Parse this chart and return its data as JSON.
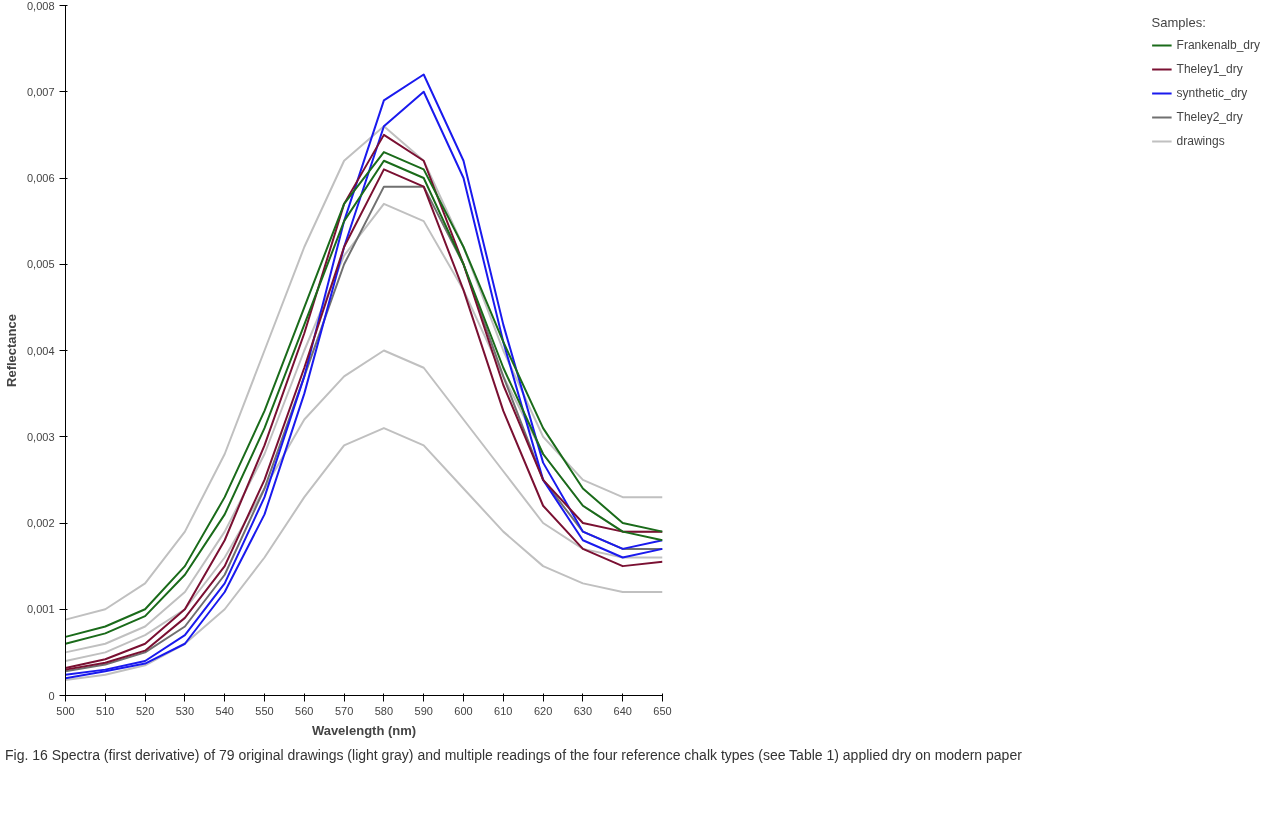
{
  "chart_data": {
    "type": "line",
    "xlabel": "Wavelength (nm)",
    "ylabel": "Reflectance",
    "legend_title": "Samples:",
    "x": [
      500,
      510,
      520,
      530,
      540,
      550,
      560,
      570,
      580,
      590,
      600,
      610,
      620,
      630,
      640,
      650
    ],
    "xlim": [
      500,
      650
    ],
    "xticks": [
      500,
      510,
      520,
      530,
      540,
      550,
      560,
      570,
      580,
      590,
      600,
      610,
      620,
      630,
      640,
      650
    ],
    "ylim": [
      0,
      0.008
    ],
    "yticks": [
      0,
      {
        "value": 0.001,
        "label": "0,001"
      },
      {
        "value": 0.002,
        "label": "0,002"
      },
      {
        "value": 0.003,
        "label": "0,003"
      },
      {
        "value": 0.004,
        "label": "0,004"
      },
      {
        "value": 0.005,
        "label": "0,005"
      },
      {
        "value": 0.006,
        "label": "0,006"
      },
      {
        "value": 0.007,
        "label": "0,007"
      },
      {
        "value": 0.008,
        "label": "0,008"
      }
    ],
    "grid": false,
    "legend": "right",
    "marker": "none",
    "line_style": "solid",
    "series": [
      {
        "name": "drawings",
        "color": "#c0c0c0",
        "values": [
          0.00088,
          0.001,
          0.0013,
          0.0019,
          0.0028,
          0.004,
          0.0052,
          0.0062,
          0.0066,
          0.0062,
          0.0052,
          0.004,
          0.003,
          0.0025,
          0.0023,
          0.0023
        ]
      },
      {
        "color": "#c0c0c0",
        "values": [
          0.0005,
          0.0006,
          0.0008,
          0.0012,
          0.0019,
          0.0028,
          0.004,
          0.0051,
          0.0057,
          0.0055,
          0.0047,
          0.0037,
          0.0028,
          0.0022,
          0.0019,
          0.0019
        ]
      },
      {
        "color": "#c0c0c0",
        "values": [
          0.0004,
          0.0005,
          0.0007,
          0.001,
          0.0016,
          0.0024,
          0.0032,
          0.0037,
          0.004,
          0.0038,
          0.0032,
          0.0026,
          0.002,
          0.0017,
          0.0016,
          0.0016
        ]
      },
      {
        "color": "#c0c0c0",
        "values": [
          0.00018,
          0.00024,
          0.00035,
          0.0006,
          0.001,
          0.0016,
          0.0023,
          0.0029,
          0.0031,
          0.0029,
          0.0024,
          0.0019,
          0.0015,
          0.0013,
          0.0012,
          0.0012
        ]
      },
      {
        "name": "Theley2_dry",
        "color": "#707070",
        "values": [
          0.00028,
          0.00036,
          0.0005,
          0.0008,
          0.0014,
          0.0024,
          0.0037,
          0.005,
          0.0059,
          0.0059,
          0.005,
          0.0037,
          0.0025,
          0.0019,
          0.0017,
          0.0017
        ]
      },
      {
        "name": "synthetic_dry",
        "color": "#1a1aee",
        "values": [
          0.00024,
          0.0003,
          0.0004,
          0.0007,
          0.0013,
          0.0023,
          0.0037,
          0.0055,
          0.0069,
          0.0072,
          0.0062,
          0.0043,
          0.0027,
          0.0019,
          0.0017,
          0.0018
        ]
      },
      {
        "color": "#1a1aee",
        "values": [
          0.0002,
          0.00028,
          0.00037,
          0.0006,
          0.0012,
          0.0021,
          0.0035,
          0.0052,
          0.0066,
          0.007,
          0.006,
          0.0041,
          0.0025,
          0.0018,
          0.0016,
          0.0017
        ]
      },
      {
        "name": "Theley1_dry",
        "color": "#7a1032",
        "values": [
          0.00032,
          0.00042,
          0.0006,
          0.001,
          0.0018,
          0.0029,
          0.0042,
          0.0057,
          0.0065,
          0.0062,
          0.005,
          0.0036,
          0.0025,
          0.002,
          0.0019,
          0.0019
        ]
      },
      {
        "color": "#7a1032",
        "values": [
          0.0003,
          0.00038,
          0.00052,
          0.0009,
          0.0015,
          0.0025,
          0.0038,
          0.0052,
          0.0061,
          0.0059,
          0.0047,
          0.0033,
          0.0022,
          0.0017,
          0.0015,
          0.00155
        ]
      },
      {
        "name": "Frankenalb_dry",
        "color": "#1a6b1a",
        "values": [
          0.00068,
          0.0008,
          0.001,
          0.0015,
          0.0023,
          0.0033,
          0.0045,
          0.0057,
          0.0063,
          0.0061,
          0.0052,
          0.0041,
          0.0031,
          0.0024,
          0.002,
          0.0019
        ]
      },
      {
        "color": "#1a6b1a",
        "values": [
          0.0006,
          0.00072,
          0.00092,
          0.0014,
          0.0021,
          0.0031,
          0.0043,
          0.0055,
          0.0062,
          0.006,
          0.005,
          0.0038,
          0.0028,
          0.0022,
          0.0019,
          0.0018
        ]
      }
    ],
    "annotations": [
      "Fig. 16 Spectra (first derivative) of 79 original drawings (light gray) and multiple readings of the four reference chalk types (see Table 1) applied dry on modern paper"
    ]
  }
}
